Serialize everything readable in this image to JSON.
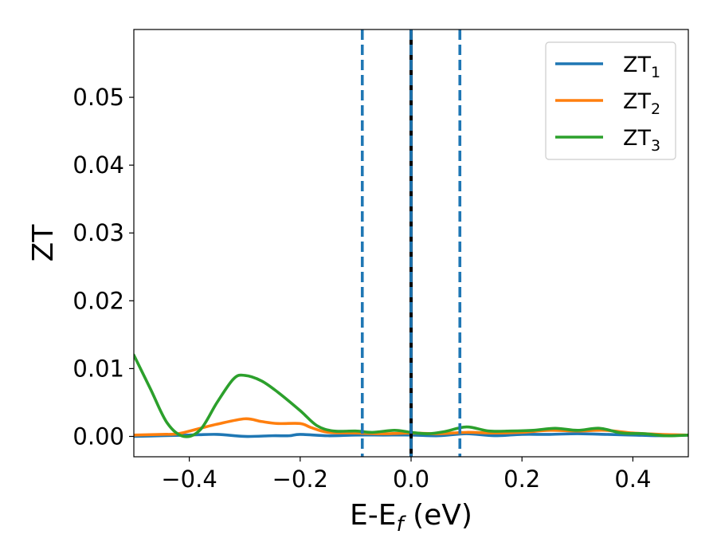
{
  "chart_data": {
    "type": "line",
    "title": "",
    "xlabel": "E-E",
    "xlabel_subscript": "f",
    "xlabel_suffix": " (eV)",
    "ylabel": "ZT",
    "xlim": [
      -0.5,
      0.5
    ],
    "ylim": [
      -0.003,
      0.06
    ],
    "xticks": [
      -0.4,
      -0.2,
      0.0,
      0.2,
      0.4
    ],
    "xtick_labels": [
      "−0.4",
      "−0.2",
      "0.0",
      "0.2",
      "0.4"
    ],
    "yticks": [
      0.0,
      0.01,
      0.02,
      0.03,
      0.04,
      0.05
    ],
    "ytick_labels": [
      "0.00",
      "0.01",
      "0.02",
      "0.03",
      "0.04",
      "0.05"
    ],
    "grid": false,
    "legend_position": "top-right",
    "series": [
      {
        "name": "ZT",
        "name_subscript": "1",
        "color": "#1f77b4",
        "x": [
          -0.5,
          -0.45,
          -0.4,
          -0.35,
          -0.3,
          -0.25,
          -0.22,
          -0.2,
          -0.15,
          -0.1,
          -0.05,
          0.0,
          0.05,
          0.1,
          0.15,
          0.2,
          0.25,
          0.3,
          0.35,
          0.4,
          0.45,
          0.5
        ],
        "y": [
          0.0,
          0.0001,
          0.0002,
          0.0003,
          0.0,
          0.0001,
          0.0001,
          0.0003,
          0.0001,
          0.0002,
          0.0002,
          0.0002,
          0.0001,
          0.0004,
          0.0001,
          0.0003,
          0.0003,
          0.0004,
          0.0003,
          0.0002,
          0.0001,
          0.0002
        ]
      },
      {
        "name": "ZT",
        "name_subscript": "2",
        "color": "#ff7f0e",
        "x": [
          -0.5,
          -0.45,
          -0.42,
          -0.38,
          -0.35,
          -0.3,
          -0.27,
          -0.24,
          -0.2,
          -0.18,
          -0.15,
          -0.1,
          -0.05,
          0.0,
          0.05,
          0.1,
          0.15,
          0.2,
          0.25,
          0.3,
          0.35,
          0.4,
          0.45,
          0.5
        ],
        "y": [
          0.0002,
          0.0003,
          0.0004,
          0.0012,
          0.0018,
          0.0026,
          0.0022,
          0.0019,
          0.0019,
          0.0013,
          0.0006,
          0.0005,
          0.0004,
          0.0005,
          0.0004,
          0.0006,
          0.0005,
          0.0006,
          0.0009,
          0.0008,
          0.0009,
          0.0005,
          0.0003,
          0.0002
        ]
      },
      {
        "name": "ZT",
        "name_subscript": "3",
        "color": "#2ca02c",
        "x": [
          -0.5,
          -0.47,
          -0.44,
          -0.41,
          -0.38,
          -0.35,
          -0.32,
          -0.3,
          -0.27,
          -0.24,
          -0.2,
          -0.17,
          -0.14,
          -0.1,
          -0.07,
          -0.03,
          0.0,
          0.03,
          0.06,
          0.1,
          0.14,
          0.18,
          0.22,
          0.26,
          0.3,
          0.34,
          0.38,
          0.42,
          0.46,
          0.5
        ],
        "y": [
          0.012,
          0.007,
          0.002,
          0.0,
          0.001,
          0.005,
          0.0085,
          0.009,
          0.0082,
          0.0065,
          0.0038,
          0.0016,
          0.0008,
          0.0008,
          0.0006,
          0.0009,
          0.0006,
          0.0004,
          0.0007,
          0.0014,
          0.0008,
          0.0008,
          0.0009,
          0.0012,
          0.0009,
          0.0012,
          0.0005,
          0.0004,
          0.0001,
          0.0002
        ]
      }
    ],
    "vertical_lines": [
      {
        "x": 0.0,
        "color": "#000000",
        "style": "solid"
      },
      {
        "x": 0.0,
        "color": "#1f77b4",
        "style": "dashed"
      },
      {
        "x": -0.088,
        "color": "#1f77b4",
        "style": "dashed"
      },
      {
        "x": 0.088,
        "color": "#1f77b4",
        "style": "dashed"
      }
    ]
  }
}
